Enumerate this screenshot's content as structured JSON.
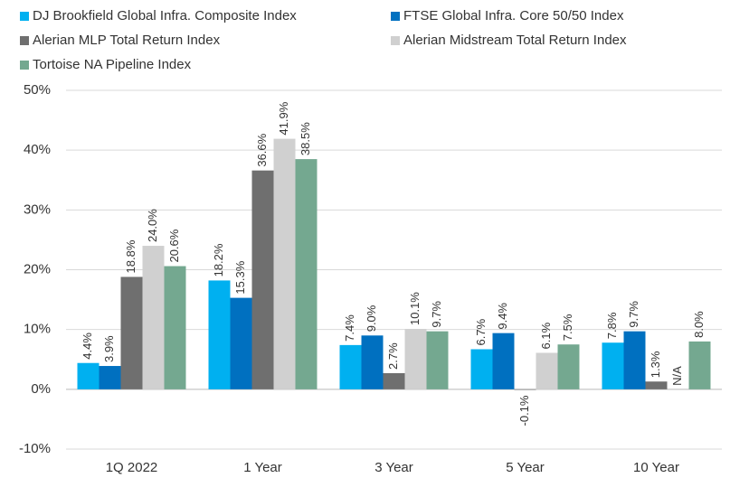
{
  "chart_data": {
    "type": "bar",
    "categories": [
      "1Q 2022",
      "1 Year",
      "3 Year",
      "5 Year",
      "10 Year"
    ],
    "series": [
      {
        "name": "DJ Brookfield Global Infra. Composite Index",
        "color": "#00b0f0",
        "values": [
          4.4,
          18.2,
          7.4,
          6.7,
          7.8
        ],
        "value_labels": [
          "4.4%",
          "18.2%",
          "7.4%",
          "6.7%",
          "7.8%"
        ]
      },
      {
        "name": "FTSE Global Infra. Core 50/50 Index",
        "color": "#0070c0",
        "values": [
          3.9,
          15.3,
          9.0,
          9.4,
          9.7
        ],
        "value_labels": [
          "3.9%",
          "15.3%",
          "9.0%",
          "9.4%",
          "9.7%"
        ]
      },
      {
        "name": "Alerian MLP Total Return Index",
        "color": "#6f6f6f",
        "values": [
          18.8,
          36.6,
          2.7,
          -0.1,
          1.3
        ],
        "value_labels": [
          "18.8%",
          "36.6%",
          "2.7%",
          "-0.1%",
          "1.3%"
        ]
      },
      {
        "name": "Alerian Midstream Total Return Index",
        "color": "#d0d0d0",
        "values": [
          24.0,
          41.9,
          10.1,
          6.1,
          null
        ],
        "value_labels": [
          "24.0%",
          "41.9%",
          "10.1%",
          "6.1%",
          "N/A"
        ]
      },
      {
        "name": "Tortoise NA Pipeline Index",
        "color": "#74a890",
        "values": [
          20.6,
          38.5,
          9.7,
          7.5,
          8.0
        ],
        "value_labels": [
          "20.6%",
          "38.5%",
          "9.7%",
          "7.5%",
          "8.0%"
        ]
      }
    ],
    "ylim": [
      -10,
      50
    ],
    "yticks": [
      {
        "value": -10,
        "label": "-10%"
      },
      {
        "value": 0,
        "label": "0%"
      },
      {
        "value": 10,
        "label": "10%"
      },
      {
        "value": 20,
        "label": "20%"
      },
      {
        "value": 30,
        "label": "30%"
      },
      {
        "value": 40,
        "label": "40%"
      },
      {
        "value": 50,
        "label": "50%"
      }
    ],
    "grid": true
  }
}
